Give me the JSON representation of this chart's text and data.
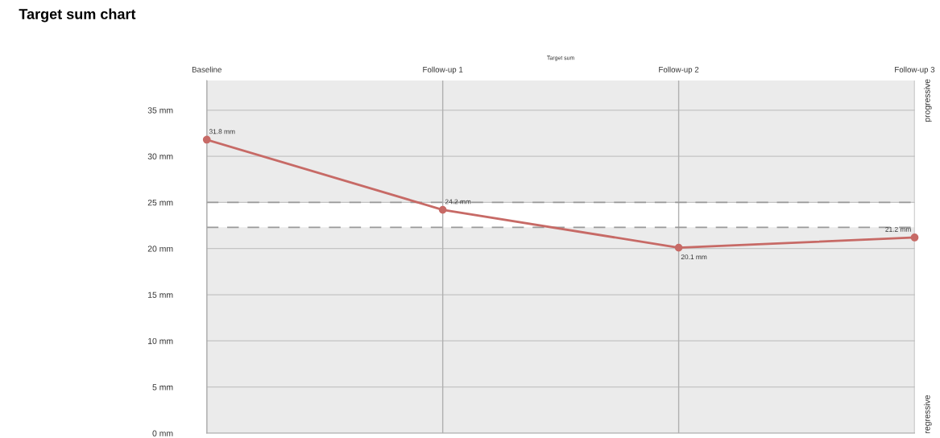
{
  "chart_data": {
    "type": "line",
    "title": "Target sum chart",
    "subtitle": "Target sum",
    "categories": [
      "Baseline",
      "Follow-up 1",
      "Follow-up 2",
      "Follow-up 3"
    ],
    "series": [
      {
        "color": "#c76a66",
        "values": [
          31.8,
          24.2,
          20.1,
          21.2
        ],
        "value_labels": [
          "31.8 mm",
          "24.2 mm",
          "20.1 mm",
          "21.2 mm"
        ]
      }
    ],
    "ylim": [
      0,
      38.2
    ],
    "yticks": [
      {
        "value": 0,
        "label": "0 mm"
      },
      {
        "value": 5,
        "label": "5 mm"
      },
      {
        "value": 10,
        "label": "10 mm"
      },
      {
        "value": 15,
        "label": "15 mm"
      },
      {
        "value": 20,
        "label": "20 mm"
      },
      {
        "value": 25,
        "label": "25 mm"
      },
      {
        "value": 30,
        "label": "30 mm"
      },
      {
        "value": 35,
        "label": "35 mm"
      }
    ],
    "bands": [
      {
        "axis": "y",
        "from": 22.3,
        "to": 25,
        "color": "#ffffff"
      }
    ],
    "ref_lines": [
      {
        "axis": "y",
        "value": 25,
        "color": "#999999",
        "line_style": "dashed"
      },
      {
        "axis": "y",
        "value": 22.3,
        "color": "#999999",
        "line_style": "dashed"
      }
    ],
    "annotations": [
      "progressive",
      "regressive"
    ],
    "grid": true,
    "marker": "circle",
    "line_style": "solid",
    "legend": false
  }
}
